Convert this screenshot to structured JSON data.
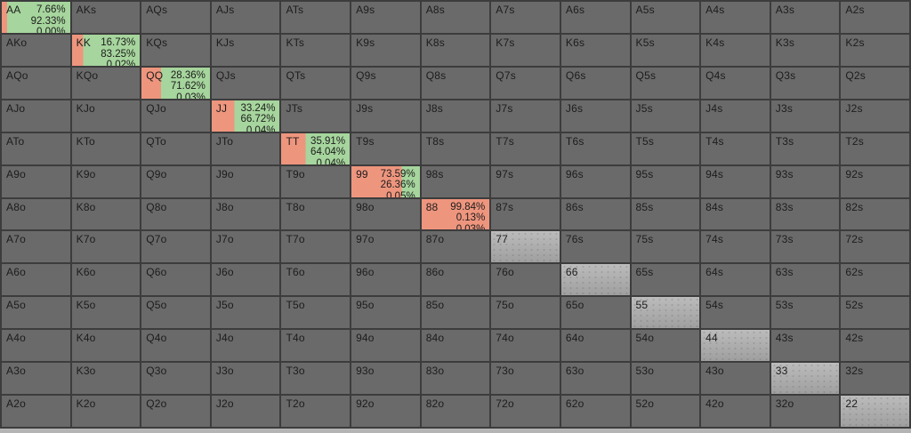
{
  "app": {
    "description": "Poker preflop range matrix grid"
  },
  "colors": {
    "cell_bg": "#6a6a6a",
    "grid_line": "#3c3c3c",
    "mix_left_salmon": "#ee957e",
    "mix_right_green": "#a6d59d",
    "light_pair_bg": "#aeaeae",
    "text": "#1c1c1c",
    "bottom_strip": "#b4b4b4"
  },
  "matrix": {
    "rows": [
      [
        "AA",
        "AKs",
        "AQs",
        "AJs",
        "ATs",
        "A9s",
        "A8s",
        "A7s",
        "A6s",
        "A5s",
        "A4s",
        "A3s",
        "A2s"
      ],
      [
        "AKo",
        "KK",
        "KQs",
        "KJs",
        "KTs",
        "K9s",
        "K8s",
        "K7s",
        "K6s",
        "K5s",
        "K4s",
        "K3s",
        "K2s"
      ],
      [
        "AQo",
        "KQo",
        "QQ",
        "QJs",
        "QTs",
        "Q9s",
        "Q8s",
        "Q7s",
        "Q6s",
        "Q5s",
        "Q4s",
        "Q3s",
        "Q2s"
      ],
      [
        "AJo",
        "KJo",
        "QJo",
        "JJ",
        "JTs",
        "J9s",
        "J8s",
        "J7s",
        "J6s",
        "J5s",
        "J4s",
        "J3s",
        "J2s"
      ],
      [
        "ATo",
        "KTo",
        "QTo",
        "JTo",
        "TT",
        "T9s",
        "T8s",
        "T7s",
        "T6s",
        "T5s",
        "T4s",
        "T3s",
        "T2s"
      ],
      [
        "A9o",
        "K9o",
        "Q9o",
        "J9o",
        "T9o",
        "99",
        "98s",
        "97s",
        "96s",
        "95s",
        "94s",
        "93s",
        "92s"
      ],
      [
        "A8o",
        "K8o",
        "Q8o",
        "J8o",
        "T8o",
        "98o",
        "88",
        "87s",
        "86s",
        "85s",
        "84s",
        "83s",
        "82s"
      ],
      [
        "A7o",
        "K7o",
        "Q7o",
        "J7o",
        "T7o",
        "97o",
        "87o",
        "77",
        "76s",
        "75s",
        "74s",
        "73s",
        "72s"
      ],
      [
        "A6o",
        "K6o",
        "Q6o",
        "J6o",
        "T6o",
        "96o",
        "86o",
        "76o",
        "66",
        "65s",
        "64s",
        "63s",
        "62s"
      ],
      [
        "A5o",
        "K5o",
        "Q5o",
        "J5o",
        "T5o",
        "95o",
        "85o",
        "75o",
        "65o",
        "55",
        "54s",
        "53s",
        "52s"
      ],
      [
        "A4o",
        "K4o",
        "Q4o",
        "J4o",
        "T4o",
        "94o",
        "84o",
        "74o",
        "64o",
        "54o",
        "44",
        "43s",
        "42s"
      ],
      [
        "A3o",
        "K3o",
        "Q3o",
        "J3o",
        "T3o",
        "93o",
        "83o",
        "73o",
        "63o",
        "53o",
        "43o",
        "33",
        "32s"
      ],
      [
        "A2o",
        "K2o",
        "Q2o",
        "J2o",
        "T2o",
        "92o",
        "82o",
        "72o",
        "62o",
        "52o",
        "42o",
        "32o",
        "22"
      ]
    ],
    "mix_cells": {
      "AA": {
        "red_pct": 7.66,
        "percents": [
          "7.66%",
          "92.33%",
          "0.00%"
        ]
      },
      "KK": {
        "red_pct": 16.73,
        "percents": [
          "16.73%",
          "83.25%",
          "0.02%"
        ]
      },
      "QQ": {
        "red_pct": 28.36,
        "percents": [
          "28.36%",
          "71.62%",
          "0.03%"
        ]
      },
      "JJ": {
        "red_pct": 33.24,
        "percents": [
          "33.24%",
          "66.72%",
          "0.04%"
        ]
      },
      "TT": {
        "red_pct": 35.91,
        "percents": [
          "35.91%",
          "64.04%",
          "0.04%"
        ]
      },
      "99": {
        "red_pct": 73.59,
        "percents": [
          "73.59%",
          "26.36%",
          "0.05%"
        ]
      },
      "88": {
        "red_pct": 99.84,
        "percents": [
          "99.84%",
          "0.13%",
          "0.03%"
        ]
      }
    },
    "light_cells": [
      "77",
      "66",
      "55",
      "44",
      "33",
      "22"
    ]
  }
}
